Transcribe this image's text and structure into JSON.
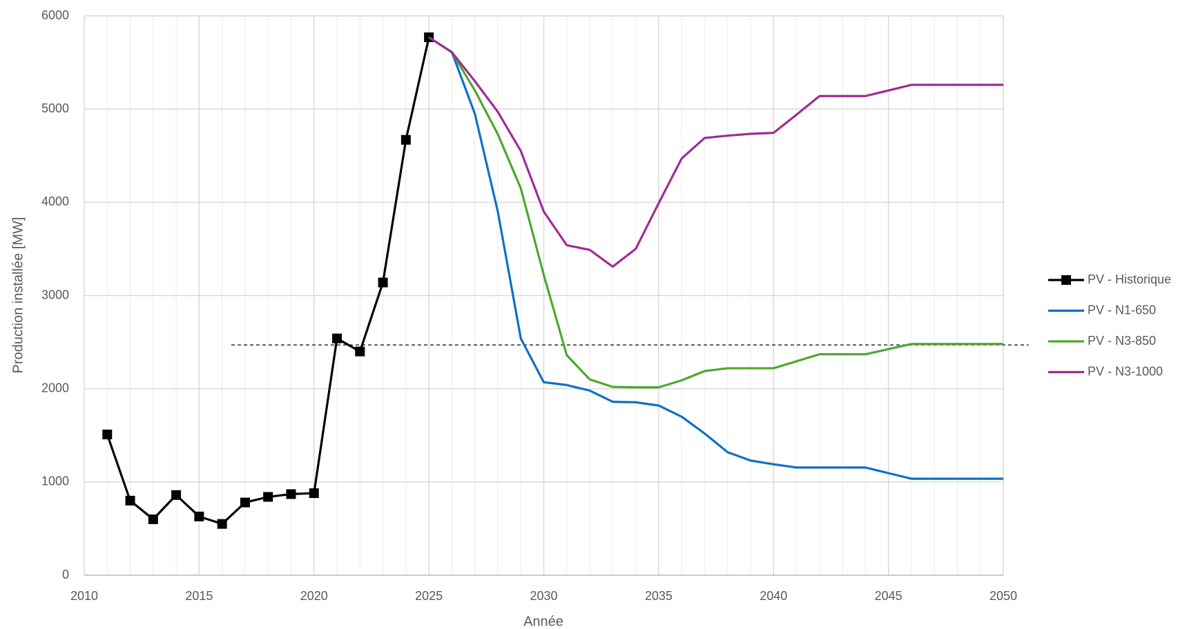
{
  "chart_data": {
    "type": "line",
    "xlabel": "Année",
    "ylabel": "Production installée [MW]",
    "x": [
      2011,
      2012,
      2013,
      2014,
      2015,
      2016,
      2017,
      2018,
      2019,
      2020,
      2021,
      2022,
      2023,
      2024,
      2025,
      2026,
      2027,
      2028,
      2029,
      2030,
      2031,
      2032,
      2033,
      2034,
      2035,
      2036,
      2037,
      2038,
      2039,
      2040,
      2041,
      2042,
      2043,
      2044,
      2045,
      2046,
      2047,
      2048,
      2049,
      2050
    ],
    "series": [
      {
        "name": "PV - Historique",
        "color": "#000000",
        "marker": "square",
        "values": [
          1510,
          800,
          600,
          860,
          630,
          550,
          780,
          840,
          870,
          880,
          2540,
          2400,
          3140,
          4670,
          5770,
          null,
          null,
          null,
          null,
          null,
          null,
          null,
          null,
          null,
          null,
          null,
          null,
          null,
          null,
          null,
          null,
          null,
          null,
          null,
          null,
          null,
          null,
          null,
          null,
          null
        ]
      },
      {
        "name": "PV - N1-650",
        "color": "#0f6fc6",
        "values": [
          null,
          null,
          null,
          null,
          null,
          null,
          null,
          null,
          null,
          null,
          null,
          null,
          null,
          null,
          5770,
          5610,
          4950,
          3900,
          2540,
          2070,
          2040,
          1980,
          1860,
          1855,
          1820,
          1700,
          1520,
          1320,
          1230,
          1190,
          1155,
          1155,
          1155,
          1155,
          1095,
          1035,
          1035,
          1035,
          1035,
          1035
        ]
      },
      {
        "name": "PV - N3-850",
        "color": "#4ea72e",
        "values": [
          null,
          null,
          null,
          null,
          null,
          null,
          null,
          null,
          null,
          null,
          null,
          null,
          null,
          null,
          5770,
          5610,
          5200,
          4730,
          4150,
          3220,
          2360,
          2100,
          2020,
          2015,
          2015,
          2090,
          2190,
          2220,
          2220,
          2220,
          2295,
          2370,
          2370,
          2370,
          2425,
          2480,
          2480,
          2480,
          2480,
          2480
        ]
      },
      {
        "name": "PV - N3-1000",
        "color": "#a02b93",
        "values": [
          null,
          null,
          null,
          null,
          null,
          null,
          null,
          null,
          null,
          null,
          null,
          null,
          null,
          null,
          5770,
          5610,
          5300,
          4970,
          4550,
          3900,
          3540,
          3490,
          3310,
          3500,
          3990,
          4470,
          4690,
          4715,
          4735,
          4745,
          4940,
          5140,
          5140,
          5140,
          5200,
          5260,
          5260,
          5260,
          5260,
          5260
        ]
      }
    ],
    "reference_line": {
      "value": 2470,
      "x": [
        2016.4,
        2051.1
      ],
      "style": "dashed",
      "color": "#000000"
    },
    "xlim": [
      2010,
      2050
    ],
    "xticks": [
      2010,
      2015,
      2020,
      2025,
      2030,
      2035,
      2040,
      2045,
      2050
    ],
    "x_minor_step": 1,
    "ylim": [
      0,
      6000
    ],
    "yticks": [
      0,
      1000,
      2000,
      3000,
      4000,
      5000,
      6000
    ],
    "grid": true,
    "legend": "right"
  }
}
